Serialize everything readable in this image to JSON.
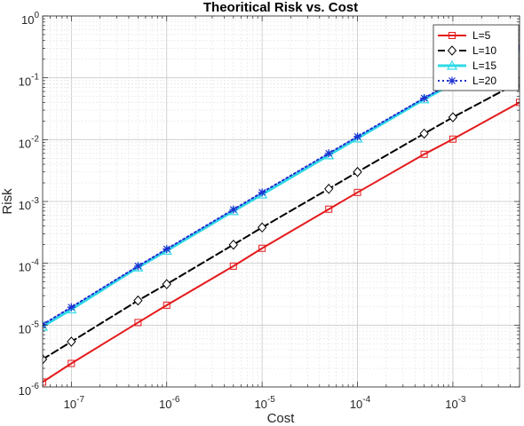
{
  "chart_data": {
    "type": "line",
    "title": "Theoritical Risk vs. Cost",
    "xlabel": "Cost",
    "ylabel": "Risk",
    "x_scale": "log",
    "y_scale": "log",
    "xlim": [
      5e-08,
      0.005
    ],
    "ylim": [
      1e-06,
      1
    ],
    "grid": true,
    "minor_grid": true,
    "legend_position": "top-right",
    "x_ticks": [
      {
        "value": 1e-07,
        "base": "10",
        "exp": "-7"
      },
      {
        "value": 1e-06,
        "base": "10",
        "exp": "-6"
      },
      {
        "value": 1e-05,
        "base": "10",
        "exp": "-5"
      },
      {
        "value": 0.0001,
        "base": "10",
        "exp": "-4"
      },
      {
        "value": 0.001,
        "base": "10",
        "exp": "-3"
      }
    ],
    "y_ticks": [
      {
        "value": 1e-06,
        "base": "10",
        "exp": "-6"
      },
      {
        "value": 1e-05,
        "base": "10",
        "exp": "-5"
      },
      {
        "value": 0.0001,
        "base": "10",
        "exp": "-4"
      },
      {
        "value": 0.001,
        "base": "10",
        "exp": "-3"
      },
      {
        "value": 0.01,
        "base": "10",
        "exp": "-2"
      },
      {
        "value": 0.1,
        "base": "10",
        "exp": "-1"
      },
      {
        "value": 1,
        "base": "10",
        "exp": "0"
      }
    ],
    "series": [
      {
        "name": "L=5",
        "color": "#e41a1c",
        "dash": "solid",
        "marker": "square",
        "linewidth": 2,
        "x": [
          5e-08,
          1e-07,
          5e-07,
          1e-06,
          5e-06,
          1e-05,
          5e-05,
          0.0001,
          0.0005,
          0.001,
          0.005
        ],
        "y": [
          1.2e-06,
          2.4e-06,
          1.1e-05,
          2.1e-05,
          9e-05,
          0.000175,
          0.00075,
          0.0014,
          0.0058,
          0.0102,
          0.04
        ]
      },
      {
        "name": "L=10",
        "color": "#000000",
        "dash": "dashed",
        "marker": "diamond",
        "linewidth": 2,
        "x": [
          5e-08,
          1e-07,
          5e-07,
          1e-06,
          5e-06,
          1e-05,
          5e-05,
          0.0001,
          0.0005,
          0.001,
          0.005
        ],
        "y": [
          2.8e-06,
          5.4e-06,
          2.5e-05,
          4.6e-05,
          0.0002,
          0.00038,
          0.0016,
          0.003,
          0.0125,
          0.023,
          0.086
        ]
      },
      {
        "name": "L=15",
        "color": "#2fd9e6",
        "dash": "solid",
        "marker": "triangle",
        "linewidth": 3,
        "x": [
          5e-08,
          1e-07,
          5e-07,
          1e-06,
          5e-06,
          1e-05,
          5e-05,
          0.0001,
          0.0005,
          0.001,
          0.005
        ],
        "y": [
          9.5e-06,
          1.8e-05,
          8.6e-05,
          0.00016,
          0.0007,
          0.0013,
          0.0056,
          0.0105,
          0.045,
          0.08,
          0.29
        ]
      },
      {
        "name": "L=20",
        "color": "#1f2fd0",
        "dash": "dotted",
        "marker": "asterisk",
        "linewidth": 2,
        "x": [
          5e-08,
          1e-07,
          5e-07,
          1e-06,
          5e-06,
          1e-05,
          5e-05,
          0.0001,
          0.0005,
          0.001,
          0.005
        ],
        "y": [
          1.02e-05,
          1.95e-05,
          9e-05,
          0.00017,
          0.00074,
          0.0014,
          0.006,
          0.0112,
          0.047,
          0.085,
          0.31
        ]
      }
    ]
  }
}
